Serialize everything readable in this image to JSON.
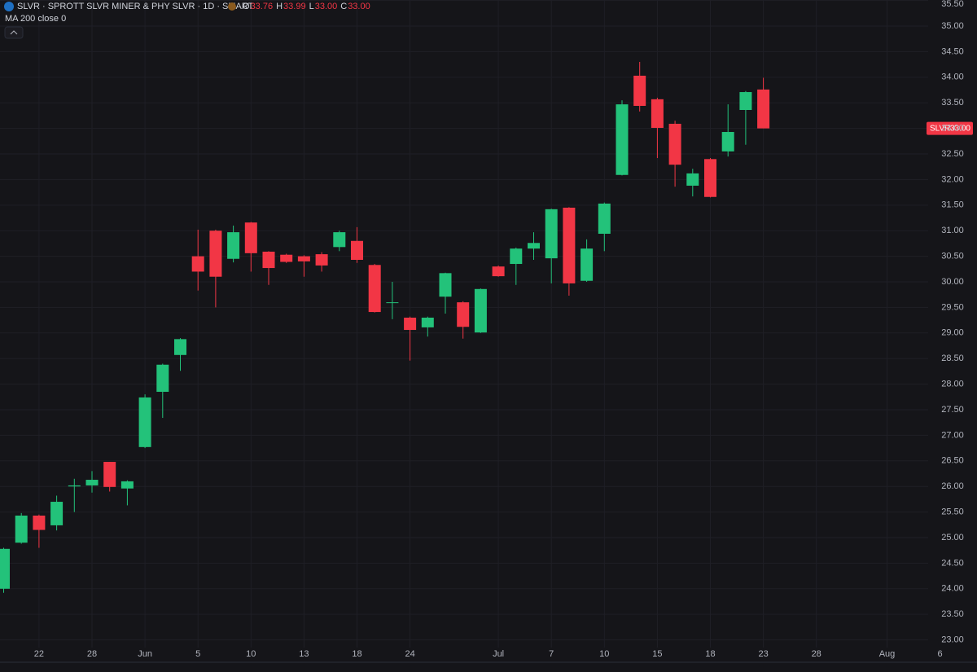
{
  "chart_data": {
    "type": "candlestick",
    "symbol_line": "SLVR · SPROTT SLVR MINER & PHY SLVR · 1D · SMART",
    "ohlc_header": [
      {
        "label": "O",
        "value": "33.76"
      },
      {
        "label": "H",
        "value": "33.99"
      },
      {
        "label": "L",
        "value": "33.00"
      },
      {
        "label": "C",
        "value": "33.00"
      }
    ],
    "indicator": "MA 200 close 0",
    "price_tag": {
      "symbol": "SLVR",
      "value": "33.00"
    },
    "up_color": "#23c27a",
    "down_color": "#f23645",
    "grid": true,
    "categories": [
      null,
      null,
      "22",
      null,
      null,
      "28",
      null,
      null,
      "Jun",
      null,
      null,
      "5",
      null,
      null,
      "10",
      null,
      null,
      "13",
      null,
      null,
      "18",
      null,
      null,
      "24",
      null,
      null,
      null,
      null,
      "Jul",
      null,
      null,
      "7",
      null,
      null,
      "10",
      null,
      null,
      "15",
      null,
      null,
      "18",
      null,
      null,
      "23",
      null,
      null,
      "28",
      null,
      null,
      null,
      "Aug",
      null,
      null,
      "6"
    ],
    "open": [
      24.0,
      24.9,
      25.43,
      25.24,
      26.0,
      26.02,
      26.48,
      25.96,
      26.77,
      27.85,
      28.57,
      30.5,
      31.0,
      30.45,
      31.16,
      30.59,
      30.53,
      30.5,
      30.54,
      30.68,
      30.8,
      30.33,
      29.6,
      29.3,
      29.11,
      29.71,
      29.6,
      29.01,
      30.3,
      30.35,
      30.65,
      30.46,
      31.45,
      30.02,
      30.94,
      32.09,
      34.03,
      33.57,
      33.09,
      31.88,
      32.4,
      32.55,
      33.36,
      33.76,
      null,
      null,
      null,
      null,
      null,
      null,
      null,
      null,
      null,
      null
    ],
    "high": [
      24.8,
      25.48,
      25.45,
      25.82,
      26.15,
      26.3,
      26.48,
      26.12,
      27.8,
      28.4,
      28.9,
      31.02,
      31.02,
      31.1,
      31.17,
      30.6,
      30.55,
      30.52,
      30.58,
      31.0,
      31.07,
      30.35,
      30.0,
      29.32,
      29.32,
      30.18,
      29.62,
      29.87,
      30.32,
      30.67,
      30.97,
      31.43,
      31.46,
      30.83,
      31.55,
      33.55,
      34.3,
      33.6,
      33.15,
      32.21,
      32.42,
      33.47,
      33.73,
      33.99,
      null,
      null,
      null,
      null,
      null,
      null,
      null,
      null,
      null,
      null
    ],
    "low": [
      23.92,
      24.88,
      24.8,
      25.14,
      25.5,
      25.88,
      25.9,
      25.63,
      26.75,
      27.34,
      28.26,
      29.83,
      29.5,
      30.38,
      30.2,
      29.94,
      30.37,
      30.1,
      30.2,
      30.6,
      30.37,
      29.4,
      29.27,
      28.46,
      28.93,
      29.38,
      28.89,
      29.0,
      30.1,
      29.94,
      30.43,
      29.97,
      29.73,
      30.0,
      30.6,
      32.08,
      33.33,
      32.42,
      31.86,
      31.67,
      31.65,
      32.45,
      32.68,
      33.0,
      null,
      null,
      null,
      null,
      null,
      null,
      null,
      null,
      null,
      null
    ],
    "close": [
      24.78,
      25.43,
      25.15,
      25.7,
      26.02,
      26.13,
      25.99,
      26.1,
      27.74,
      28.38,
      28.88,
      30.2,
      30.1,
      30.97,
      30.56,
      30.27,
      30.39,
      30.4,
      30.32,
      30.97,
      30.43,
      29.41,
      29.6,
      29.06,
      29.3,
      30.17,
      29.12,
      29.86,
      30.11,
      30.65,
      30.76,
      31.42,
      29.97,
      30.65,
      31.53,
      33.47,
      33.44,
      33.01,
      32.29,
      32.12,
      31.66,
      32.93,
      33.71,
      33.0,
      null,
      null,
      null,
      null,
      null,
      null,
      null,
      null,
      null,
      null
    ],
    "ylim": [
      22.85,
      35.51
    ],
    "yticks": [
      {
        "value": 23.0,
        "label": "23.00"
      },
      {
        "value": 23.5,
        "label": "23.50"
      },
      {
        "value": 24.0,
        "label": "24.00"
      },
      {
        "value": 24.5,
        "label": "24.50"
      },
      {
        "value": 25.0,
        "label": "25.00"
      },
      {
        "value": 25.5,
        "label": "25.50"
      },
      {
        "value": 26.0,
        "label": "26.00"
      },
      {
        "value": 26.5,
        "label": "26.50"
      },
      {
        "value": 27.0,
        "label": "27.00"
      },
      {
        "value": 27.5,
        "label": "27.50"
      },
      {
        "value": 28.0,
        "label": "28.00"
      },
      {
        "value": 28.5,
        "label": "28.50"
      },
      {
        "value": 29.0,
        "label": "29.00"
      },
      {
        "value": 29.5,
        "label": "29.50"
      },
      {
        "value": 30.0,
        "label": "30.00"
      },
      {
        "value": 30.5,
        "label": "30.50"
      },
      {
        "value": 31.0,
        "label": "31.00"
      },
      {
        "value": 31.5,
        "label": "31.50"
      },
      {
        "value": 32.0,
        "label": "32.00"
      },
      {
        "value": 32.5,
        "label": "32.50"
      },
      {
        "value": 33.0,
        "label": "33.00"
      },
      {
        "value": 33.5,
        "label": "33.50"
      },
      {
        "value": 34.0,
        "label": "34.00"
      },
      {
        "value": 34.5,
        "label": "34.50"
      },
      {
        "value": 35.0,
        "label": "35.00"
      },
      {
        "value": 35.5,
        "label": "35.50"
      }
    ]
  }
}
